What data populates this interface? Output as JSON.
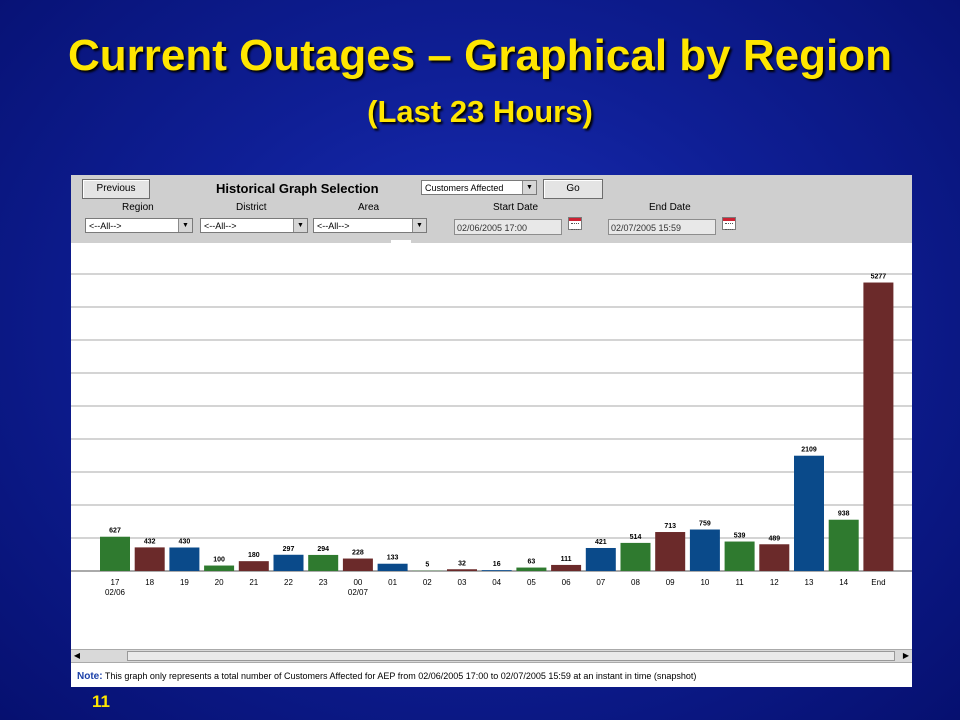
{
  "slide": {
    "title_main": "Current Outages – Graphical by Region",
    "title_sub": "(Last 23 Hours)",
    "page_number": "11"
  },
  "toolbar": {
    "previous_label": "Previous",
    "heading": "Historical Graph Selection",
    "metric_value": "Customers Affected",
    "go_label": "Go",
    "region_label": "Region",
    "region_value": "<--All-->",
    "district_label": "District",
    "district_value": "<--All-->",
    "area_label": "Area",
    "area_value": "<--All-->",
    "start_label": "Start Date",
    "start_value": "02/06/2005 17:00",
    "end_label": "End Date",
    "end_value": "02/07/2005 15:59"
  },
  "note": {
    "label": "Note:",
    "text": "This graph only represents a total number of Customers Affected for AEP from 02/06/2005 17:00 to 02/07/2005 15:59 at an instant in time (snapshot)"
  },
  "colors": {
    "green": "#2f7a2f",
    "maroon": "#6b2a2a",
    "blue": "#0a4a8a"
  },
  "chart_data": {
    "type": "bar",
    "categories": [
      "17",
      "18",
      "19",
      "20",
      "21",
      "22",
      "23",
      "00",
      "01",
      "02",
      "03",
      "04",
      "05",
      "06",
      "07",
      "08",
      "09",
      "10",
      "11",
      "12",
      "13",
      "14",
      "End"
    ],
    "sublabels": {
      "0": "02/06",
      "7": "02/07"
    },
    "values": [
      627,
      432,
      430,
      100,
      180,
      297,
      294,
      228,
      133,
      5,
      32,
      16,
      63,
      111,
      421,
      514,
      713,
      759,
      539,
      489,
      2109,
      938,
      5277
    ],
    "bar_colors": [
      "green",
      "maroon",
      "blue",
      "green",
      "maroon",
      "blue",
      "green",
      "maroon",
      "blue",
      "green",
      "maroon",
      "blue",
      "green",
      "maroon",
      "blue",
      "green",
      "maroon",
      "blue",
      "green",
      "maroon",
      "blue",
      "green",
      "maroon"
    ],
    "ylim": [
      0,
      6000
    ],
    "grid": true,
    "legend": "none"
  }
}
